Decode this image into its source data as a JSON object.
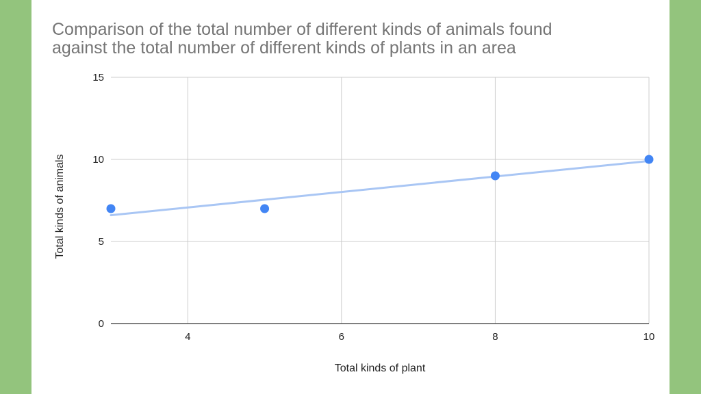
{
  "colors": {
    "background": "#93c47d",
    "panel": "#ffffff",
    "points": "#4285f4",
    "trendline": "#a9c6f4",
    "grid": "#cccccc",
    "axis": "#333333",
    "title": "#757575"
  },
  "chart_data": {
    "type": "scatter",
    "title_lines": [
      "Comparison of the total number of different kinds of animals found",
      "against the total number of different kinds of plants in an area"
    ],
    "xlabel": "Total kinds of plant",
    "ylabel": "Total kinds of animals",
    "xlim": [
      3,
      10
    ],
    "ylim": [
      0,
      15
    ],
    "x_ticks": [
      4,
      6,
      8,
      10
    ],
    "y_ticks": [
      0,
      5,
      10,
      15
    ],
    "grid": true,
    "legend": "none",
    "points": [
      {
        "x": 3,
        "y": 7
      },
      {
        "x": 5,
        "y": 7
      },
      {
        "x": 8,
        "y": 9
      },
      {
        "x": 10,
        "y": 10
      }
    ],
    "trendline": {
      "type": "linear",
      "start": {
        "x": 3,
        "y": 6.6
      },
      "end": {
        "x": 10,
        "y": 9.9
      }
    }
  }
}
